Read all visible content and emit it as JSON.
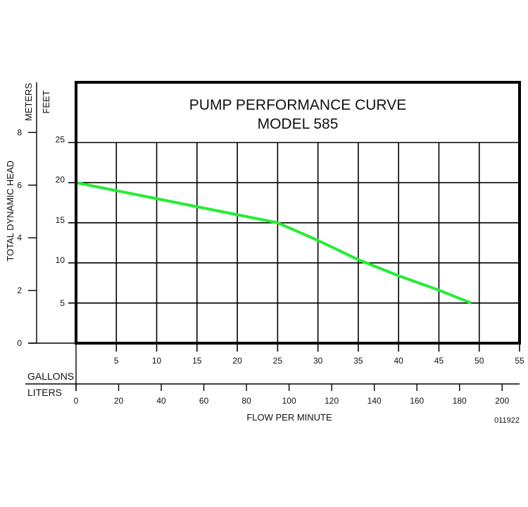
{
  "chart_data": {
    "type": "line",
    "title": "PUMP PERFORMANCE CURVE",
    "subtitle": "MODEL 585",
    "ylabel": "TOTAL DYNAMIC HEAD",
    "xlabel": "FLOW PER MINUTE",
    "y_axes": [
      {
        "unit": "FEET",
        "ticks": [
          5,
          10,
          15,
          20,
          25
        ],
        "range": [
          0,
          32.5
        ]
      },
      {
        "unit": "METERS",
        "ticks": [
          0,
          2,
          4,
          6,
          8
        ]
      }
    ],
    "x_axes": [
      {
        "unit": "GALLONS",
        "ticks": [
          5,
          10,
          15,
          20,
          25,
          30,
          35,
          40,
          45,
          50,
          55
        ],
        "range": [
          0,
          55
        ]
      },
      {
        "unit": "LITERS",
        "ticks": [
          0,
          20,
          40,
          60,
          80,
          100,
          120,
          140,
          160,
          180,
          200
        ]
      }
    ],
    "grid": true,
    "series": [
      {
        "color": "#22ee33",
        "x_gallons": [
          0,
          10,
          20,
          25,
          30,
          35,
          40,
          45,
          49
        ],
        "y_feet": [
          20,
          18,
          16,
          15,
          12.8,
          10.4,
          8.4,
          6.6,
          5
        ]
      }
    ]
  },
  "code": "011922"
}
